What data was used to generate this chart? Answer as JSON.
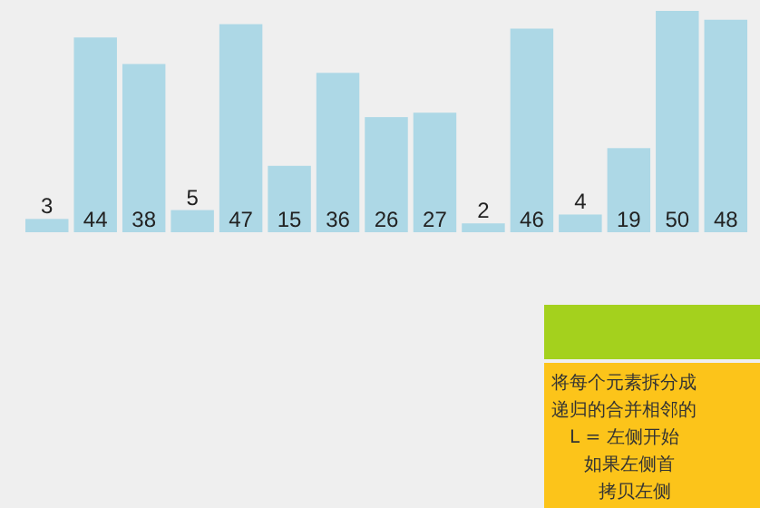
{
  "chart_data": {
    "type": "bar",
    "categories": [
      null,
      null,
      null,
      null,
      null,
      null,
      null,
      null,
      null,
      null,
      null,
      null,
      null,
      null,
      null
    ],
    "values": [
      3,
      44,
      38,
      5,
      47,
      15,
      36,
      26,
      27,
      2,
      46,
      4,
      19,
      50,
      48
    ],
    "color": "#add8e6",
    "data_labels": true,
    "annotations": [
      "将每个元素拆分成",
      "递归的合并相邻的",
      "L = 左侧开始",
      "如果左侧首",
      "拷贝左侧"
    ]
  }
}
